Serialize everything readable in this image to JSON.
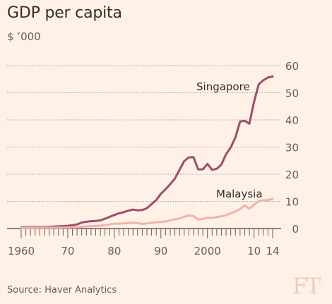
{
  "header": {
    "title": "GDP per capita",
    "subtitle": "$ ’000"
  },
  "footer": {
    "source": "Source: Haver Analytics",
    "logo": "FT"
  },
  "colors": {
    "background": "#fff1e5",
    "singapore": "#9e4e6e",
    "malaysia": "#f2b3aa",
    "grid": "#a7a09a",
    "text": "#66605c"
  },
  "chart_data": {
    "type": "line",
    "title": "GDP per capita",
    "ylabel": "$ ’000",
    "xlim": [
      1960,
      2014
    ],
    "ylim": [
      0,
      60
    ],
    "y_ticks": [
      0,
      10,
      20,
      30,
      40,
      50,
      60
    ],
    "y_axis_position": "right",
    "x_ticks": [
      {
        "value": 1960,
        "label": "1960"
      },
      {
        "value": 1970,
        "label": "70"
      },
      {
        "value": 1980,
        "label": "80"
      },
      {
        "value": 1990,
        "label": "90"
      },
      {
        "value": 2000,
        "label": "2000"
      },
      {
        "value": 2010,
        "label": "10"
      },
      {
        "value": 2014,
        "label": "14"
      }
    ],
    "grid": true,
    "series": [
      {
        "name": "Singapore",
        "color": "#9e4e6e",
        "points": [
          [
            1960,
            0.4
          ],
          [
            1961,
            0.45
          ],
          [
            1962,
            0.5
          ],
          [
            1963,
            0.55
          ],
          [
            1964,
            0.55
          ],
          [
            1965,
            0.6
          ],
          [
            1966,
            0.65
          ],
          [
            1967,
            0.7
          ],
          [
            1968,
            0.8
          ],
          [
            1969,
            0.9
          ],
          [
            1970,
            1.0
          ],
          [
            1971,
            1.2
          ],
          [
            1972,
            1.5
          ],
          [
            1973,
            2.2
          ],
          [
            1974,
            2.5
          ],
          [
            1975,
            2.7
          ],
          [
            1976,
            2.8
          ],
          [
            1977,
            3.0
          ],
          [
            1978,
            3.6
          ],
          [
            1979,
            4.3
          ],
          [
            1980,
            5.0
          ],
          [
            1981,
            5.6
          ],
          [
            1982,
            6.0
          ],
          [
            1983,
            6.6
          ],
          [
            1984,
            7.0
          ],
          [
            1985,
            6.7
          ],
          [
            1986,
            6.8
          ],
          [
            1987,
            7.5
          ],
          [
            1988,
            9.0
          ],
          [
            1989,
            10.5
          ],
          [
            1990,
            12.8
          ],
          [
            1991,
            14.5
          ],
          [
            1992,
            16.3
          ],
          [
            1993,
            18.4
          ],
          [
            1994,
            21.6
          ],
          [
            1995,
            24.8
          ],
          [
            1996,
            26.2
          ],
          [
            1997,
            26.3
          ],
          [
            1998,
            21.8
          ],
          [
            1999,
            21.8
          ],
          [
            2000,
            23.8
          ],
          [
            2001,
            21.6
          ],
          [
            2002,
            22.0
          ],
          [
            2003,
            23.6
          ],
          [
            2004,
            27.4
          ],
          [
            2005,
            29.9
          ],
          [
            2006,
            33.6
          ],
          [
            2007,
            39.4
          ],
          [
            2008,
            39.7
          ],
          [
            2009,
            38.6
          ],
          [
            2010,
            46.6
          ],
          [
            2011,
            53.1
          ],
          [
            2012,
            54.6
          ],
          [
            2013,
            55.6
          ],
          [
            2014,
            56.0
          ]
        ]
      },
      {
        "name": "Malaysia",
        "color": "#f2b3aa",
        "points": [
          [
            1960,
            0.2
          ],
          [
            1962,
            0.25
          ],
          [
            1964,
            0.3
          ],
          [
            1966,
            0.3
          ],
          [
            1968,
            0.35
          ],
          [
            1970,
            0.4
          ],
          [
            1972,
            0.5
          ],
          [
            1974,
            0.8
          ],
          [
            1976,
            0.9
          ],
          [
            1978,
            1.2
          ],
          [
            1979,
            1.5
          ],
          [
            1980,
            1.8
          ],
          [
            1981,
            1.8
          ],
          [
            1982,
            1.9
          ],
          [
            1983,
            2.0
          ],
          [
            1984,
            2.2
          ],
          [
            1985,
            2.0
          ],
          [
            1986,
            1.7
          ],
          [
            1987,
            1.9
          ],
          [
            1988,
            2.1
          ],
          [
            1989,
            2.3
          ],
          [
            1990,
            2.4
          ],
          [
            1991,
            2.6
          ],
          [
            1992,
            3.1
          ],
          [
            1993,
            3.4
          ],
          [
            1994,
            3.7
          ],
          [
            1995,
            4.3
          ],
          [
            1996,
            4.8
          ],
          [
            1997,
            4.6
          ],
          [
            1998,
            3.3
          ],
          [
            1999,
            3.5
          ],
          [
            2000,
            4.0
          ],
          [
            2001,
            3.9
          ],
          [
            2002,
            4.2
          ],
          [
            2003,
            4.5
          ],
          [
            2004,
            4.9
          ],
          [
            2005,
            5.6
          ],
          [
            2006,
            6.2
          ],
          [
            2007,
            7.2
          ],
          [
            2008,
            8.5
          ],
          [
            2009,
            7.3
          ],
          [
            2010,
            8.8
          ],
          [
            2011,
            10.0
          ],
          [
            2012,
            10.4
          ],
          [
            2013,
            10.5
          ],
          [
            2014,
            10.9
          ]
        ]
      }
    ],
    "annotations": [
      {
        "text": "Singapore",
        "series": "Singapore"
      },
      {
        "text": "Malaysia",
        "series": "Malaysia"
      }
    ]
  }
}
